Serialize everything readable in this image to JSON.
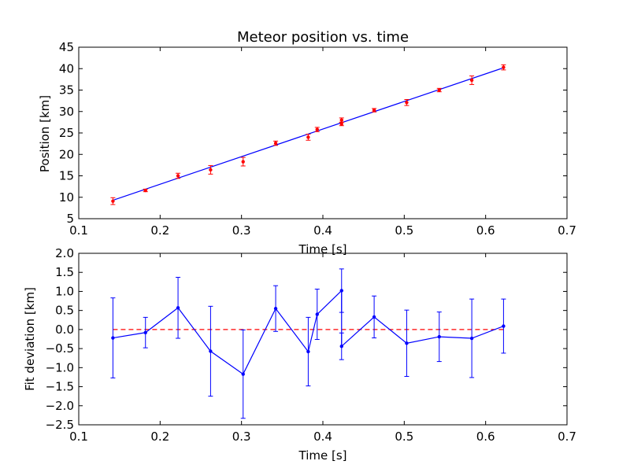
{
  "chart_data": [
    {
      "type": "scatter",
      "title": "Meteor position vs. time",
      "xlabel": "Time [s]",
      "ylabel": "Position [km]",
      "xlim": [
        0.1,
        0.7
      ],
      "ylim": [
        5,
        45
      ],
      "xticks": [
        "0.1",
        "0.2",
        "0.3",
        "0.4",
        "0.5",
        "0.6",
        "0.7"
      ],
      "yticks": [
        "5",
        "10",
        "15",
        "20",
        "25",
        "30",
        "35",
        "40",
        "45"
      ],
      "grid": false,
      "points": {
        "color": "#ff0000",
        "x": [
          0.142,
          0.182,
          0.222,
          0.262,
          0.302,
          0.342,
          0.382,
          0.393,
          0.423,
          0.423,
          0.463,
          0.503,
          0.543,
          0.583,
          0.622
        ],
        "y": [
          9.1,
          11.6,
          15.0,
          16.4,
          18.3,
          22.6,
          24.0,
          25.8,
          28.0,
          27.1,
          30.3,
          32.1,
          35.0,
          37.3,
          40.3
        ],
        "err": [
          0.8,
          0.3,
          0.6,
          1.0,
          1.0,
          0.5,
          0.7,
          0.5,
          0.5,
          0.4,
          0.4,
          0.7,
          0.4,
          1.0,
          0.6
        ]
      },
      "fit_line": {
        "color": "#0000ff",
        "x": [
          0.142,
          0.622
        ],
        "y": [
          9.3,
          40.2
        ]
      }
    },
    {
      "type": "line",
      "title": "",
      "xlabel": "Time [s]",
      "ylabel": "Fit deviation [km]",
      "xlim": [
        0.1,
        0.7
      ],
      "ylim": [
        -2.5,
        2.0
      ],
      "xticks": [
        "0.1",
        "0.2",
        "0.3",
        "0.4",
        "0.5",
        "0.6",
        "0.7"
      ],
      "yticks": [
        "−2.5",
        "−2.0",
        "−1.5",
        "−1.0",
        "−0.5",
        "0.0",
        "0.5",
        "1.0",
        "1.5",
        "2.0"
      ],
      "grid": false,
      "series": {
        "color": "#0000ff",
        "x": [
          0.142,
          0.182,
          0.222,
          0.262,
          0.302,
          0.342,
          0.382,
          0.393,
          0.423,
          0.423,
          0.463,
          0.503,
          0.543,
          0.583,
          0.622
        ],
        "y": [
          -0.22,
          -0.08,
          0.57,
          -0.57,
          -1.17,
          0.55,
          -0.58,
          0.4,
          1.02,
          -0.44,
          0.33,
          -0.36,
          -0.19,
          -0.23,
          0.09
        ],
        "err": [
          1.05,
          0.4,
          0.8,
          1.18,
          1.16,
          0.6,
          0.9,
          0.66,
          0.57,
          0.35,
          0.55,
          0.87,
          0.65,
          1.03,
          0.71
        ]
      },
      "reference_line": {
        "y": 0.0,
        "x": [
          0.142,
          0.622
        ],
        "color": "#ff0000",
        "style": "dashed"
      }
    }
  ]
}
